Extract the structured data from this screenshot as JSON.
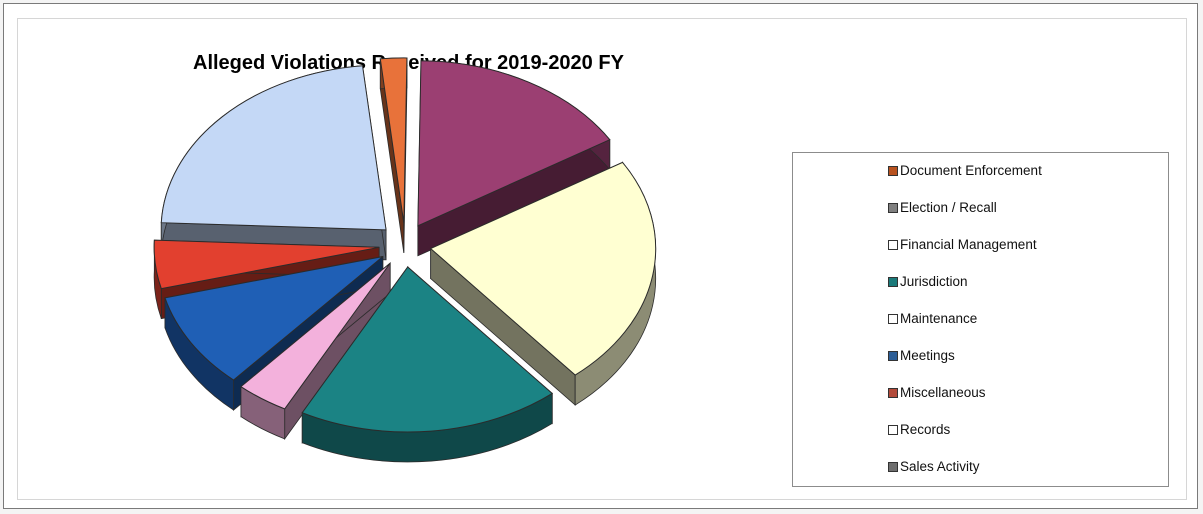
{
  "chart_data": {
    "type": "pie",
    "style": "3d-exploded",
    "title": "Alleged Violations Received for 2019-2020 FY",
    "legend_position": "right",
    "slices": [
      {
        "label": "Document Enforcement",
        "value": 2,
        "color": "#e8723a"
      },
      {
        "label": "Election / Recall",
        "value": 17,
        "color": "#9b3f72"
      },
      {
        "label": "Financial Management",
        "value": 24,
        "color": "#ffffd2"
      },
      {
        "label": "Jurisdiction",
        "value": 20,
        "color": "#1b8384"
      },
      {
        "label": "Maintenance",
        "value": 4,
        "color": "#f3b1dc"
      },
      {
        "label": "Meetings",
        "value": 10,
        "color": "#1f5fb5"
      },
      {
        "label": "Miscellaneous",
        "value": 5,
        "color": "#e2402f"
      },
      {
        "label": "Records",
        "value": 0,
        "color": "#ffffff"
      },
      {
        "label": "Sales Activity",
        "value": 24,
        "color": "#c4d8f6"
      }
    ],
    "legend": [
      {
        "label": "Document Enforcement",
        "color": "#b8521f"
      },
      {
        "label": "Election / Recall",
        "color": "#808080"
      },
      {
        "label": "Financial Management",
        "color": "#ffffff"
      },
      {
        "label": "Jurisdiction",
        "color": "#1b7a7a"
      },
      {
        "label": "Maintenance",
        "color": "#ffffff"
      },
      {
        "label": "Meetings",
        "color": "#2d5e96"
      },
      {
        "label": "Miscellaneous",
        "color": "#b24a3a"
      },
      {
        "label": "Records",
        "color": "#ffffff"
      },
      {
        "label": "Sales Activity",
        "color": "#6e6e6e"
      }
    ]
  }
}
